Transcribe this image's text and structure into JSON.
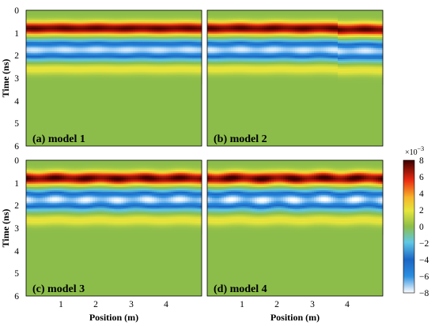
{
  "chart_data": {
    "type": "heatmap",
    "colormap": "jet",
    "panels": [
      {
        "label": "(a) model 1",
        "bands": {
          "pos_peak_ns": 0.8,
          "neg_peak_ns": 1.75,
          "pos2_peak_ns": 2.6
        },
        "ripple": 0.25
      },
      {
        "label": "(b) model 2",
        "bands": {
          "pos_peak_ns": 0.8,
          "neg_peak_ns": 1.75,
          "pos2_peak_ns": 2.6
        },
        "ripple": 0.35,
        "step_at_m": 3.7
      },
      {
        "label": "(c) model 3",
        "bands": {
          "pos_peak_ns": 0.8,
          "neg_peak_ns": 1.75,
          "pos2_peak_ns": 2.65
        },
        "ripple": 0.6
      },
      {
        "label": "(d) model 4",
        "bands": {
          "pos_peak_ns": 0.8,
          "neg_peak_ns": 1.75,
          "pos2_peak_ns": 2.65
        },
        "ripple": 0.75
      }
    ],
    "xlabel": "Position (m)",
    "ylabel": "Time (ns)",
    "xticks": [
      "1",
      "2",
      "3",
      "4"
    ],
    "xlim": [
      0,
      5
    ],
    "yticks": [
      "0",
      "1",
      "2",
      "3",
      "4",
      "5",
      "6"
    ],
    "ylim": [
      0,
      6
    ],
    "colorbar": {
      "ticks": [
        "8",
        "6",
        "4",
        "2",
        "0",
        "−2",
        "−4",
        "−6",
        "−8"
      ],
      "range": [
        -8,
        8
      ],
      "exponent_label": "×10",
      "exponent": "−3"
    }
  }
}
